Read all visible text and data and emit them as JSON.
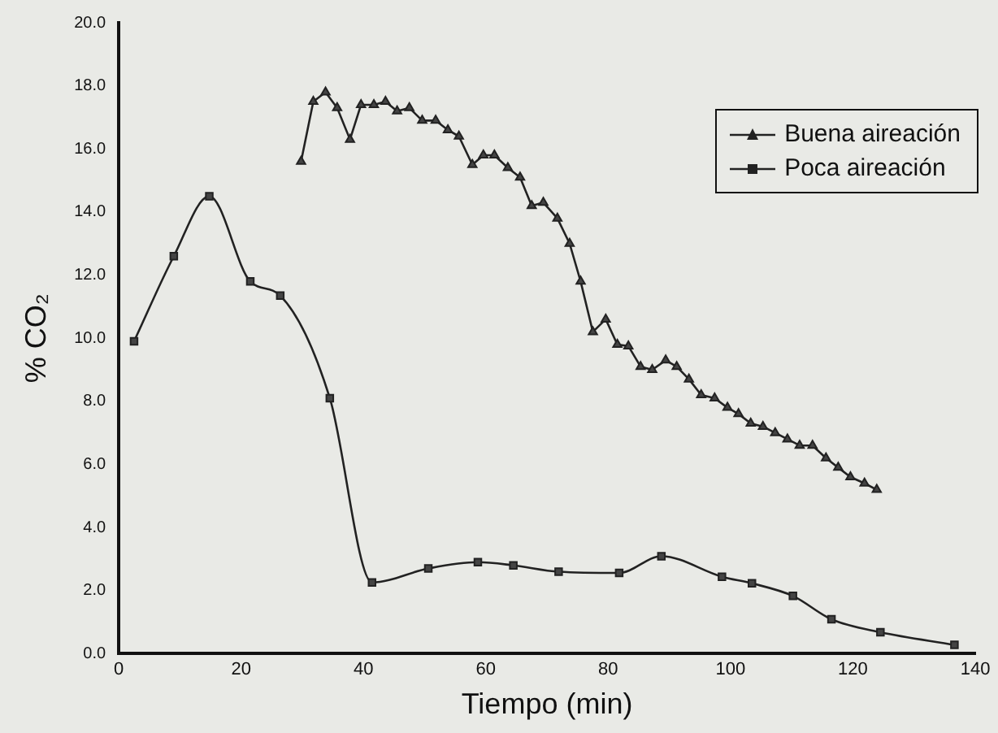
{
  "chart_data": {
    "type": "line",
    "xlabel": "Tiempo (min)",
    "ylabel": "% CO₂",
    "xlim": [
      0,
      140
    ],
    "xticks": [
      0,
      20,
      40,
      60,
      80,
      100,
      120,
      140
    ],
    "ylim": [
      0,
      20
    ],
    "yticks": [
      {
        "value": 0,
        "label": "0.0"
      },
      {
        "value": 2,
        "label": "2.0"
      },
      {
        "value": 4,
        "label": "4.0"
      },
      {
        "value": 6,
        "label": "6.0"
      },
      {
        "value": 8,
        "label": "8.0"
      },
      {
        "value": 10,
        "label": "10.0"
      },
      {
        "value": 12,
        "label": "12.0"
      },
      {
        "value": 14,
        "label": "14.0"
      },
      {
        "value": 16,
        "label": "16.0"
      },
      {
        "value": 18,
        "label": "18.0"
      },
      {
        "value": 20,
        "label": "20.0"
      }
    ],
    "grid": false,
    "legend": "top right",
    "series": [
      {
        "name": "Buena aireación",
        "color": "#222222",
        "marker": "triangle",
        "x": [
          29.8,
          31.8,
          33.8,
          35.7,
          37.8,
          39.6,
          41.7,
          43.6,
          45.5,
          47.5,
          49.6,
          51.8,
          53.8,
          55.6,
          57.8,
          59.6,
          61.4,
          63.6,
          65.6,
          67.5,
          69.4,
          71.7,
          73.7,
          75.5,
          77.5,
          79.6,
          81.5,
          83.3,
          85.3,
          87.2,
          89.4,
          91.2,
          93.2,
          95.2,
          97.4,
          99.5,
          101.3,
          103.3,
          105.3,
          107.3,
          109.3,
          111.3,
          113.4,
          115.6,
          117.6,
          119.6,
          121.9,
          123.9
        ],
        "values": [
          15.6,
          17.5,
          17.8,
          17.3,
          16.3,
          17.4,
          17.4,
          17.5,
          17.2,
          17.3,
          16.9,
          16.9,
          16.6,
          16.4,
          15.5,
          15.8,
          15.8,
          15.4,
          15.1,
          14.2,
          14.3,
          13.8,
          13.0,
          11.8,
          10.2,
          10.6,
          9.8,
          9.75,
          9.1,
          9.0,
          9.3,
          9.1,
          8.7,
          8.2,
          8.1,
          7.8,
          7.6,
          7.3,
          7.2,
          7.0,
          6.8,
          6.6,
          6.6,
          6.2,
          5.9,
          5.6,
          5.4,
          5.2
        ]
      },
      {
        "name": "Poca aireación",
        "color": "#222222",
        "marker": "square",
        "x": [
          2.5,
          9.0,
          14.8,
          21.5,
          26.4,
          34.5,
          41.4,
          50.6,
          58.7,
          64.5,
          71.9,
          81.8,
          88.7,
          98.6,
          103.5,
          110.2,
          116.5,
          124.5,
          136.6
        ],
        "values": [
          9.9,
          12.6,
          14.5,
          11.8,
          11.35,
          8.1,
          2.26,
          2.7,
          2.9,
          2.8,
          2.6,
          2.56,
          3.09,
          2.44,
          2.23,
          1.83,
          1.09,
          0.68,
          0.28
        ]
      }
    ]
  }
}
